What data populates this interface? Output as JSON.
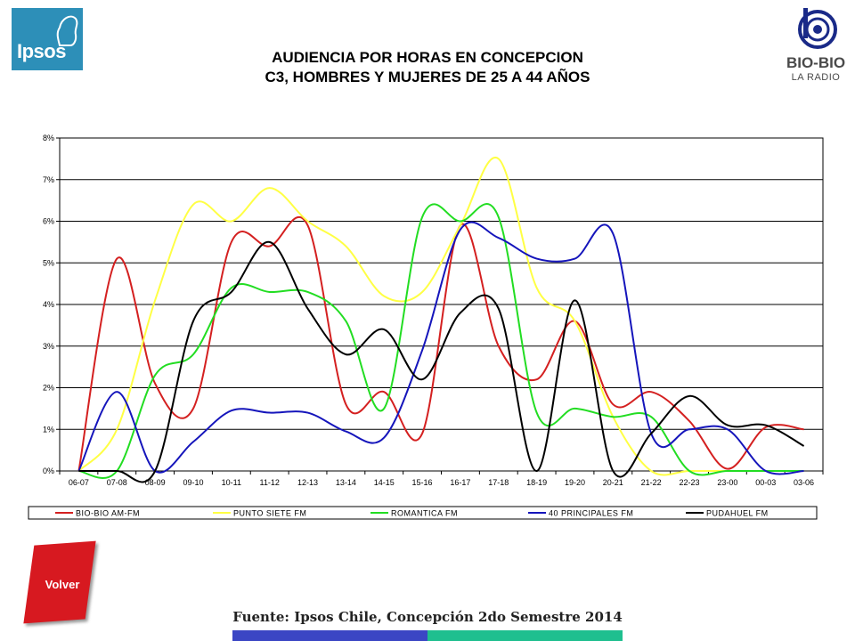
{
  "logo": {
    "text": "Ipsos"
  },
  "brand": {
    "name": "BIO-BIO",
    "subtitle": "LA RADIO"
  },
  "title": {
    "line1": "AUDIENCIA POR HORAS EN CONCEPCION",
    "line2": "C3, HOMBRES Y MUJERES DE 25 A 44 AÑOS"
  },
  "volver_label": "Volver",
  "source": "Fuente: Ipsos Chile, Concepción 2do Semestre 2014",
  "chart_data": {
    "type": "line",
    "title": "",
    "xlabel": "",
    "ylabel": "",
    "ylim": [
      0,
      8
    ],
    "ytick_labels": [
      "0%",
      "1%",
      "2%",
      "3%",
      "4%",
      "5%",
      "6%",
      "7%",
      "8%"
    ],
    "grid": true,
    "legend_position": "bottom",
    "categories": [
      "06-07",
      "07-08",
      "08-09",
      "09-10",
      "10-11",
      "11-12",
      "12-13",
      "13-14",
      "14-15",
      "15-16",
      "16-17",
      "17-18",
      "18-19",
      "19-20",
      "20-21",
      "21-22",
      "22-23",
      "23-00",
      "00-03",
      "03-06"
    ],
    "series": [
      {
        "name": "BIO-BIO AM-FM",
        "color": "#d42020",
        "values": [
          0,
          5.1,
          2.1,
          1.5,
          5.5,
          5.4,
          5.9,
          1.6,
          1.9,
          0.9,
          5.9,
          3.0,
          2.2,
          3.6,
          1.6,
          1.9,
          1.2,
          0.05,
          1.05,
          1.0
        ]
      },
      {
        "name": "PUNTO SIETE FM",
        "color": "#ffff44",
        "values": [
          0,
          1.0,
          4.1,
          6.4,
          6.0,
          6.8,
          6.0,
          5.4,
          4.2,
          4.3,
          5.9,
          7.5,
          4.4,
          3.6,
          1.3,
          0,
          0,
          0,
          0,
          0
        ]
      },
      {
        "name": "ROMANTICA FM",
        "color": "#22dd22",
        "values": [
          0,
          0,
          2.3,
          2.8,
          4.4,
          4.3,
          4.3,
          3.6,
          1.5,
          6.1,
          6.0,
          6.1,
          1.4,
          1.5,
          1.3,
          1.3,
          0,
          0,
          0,
          0
        ]
      },
      {
        "name": "40 PRINCIPALES FM",
        "color": "#1515bb",
        "values": [
          0,
          1.9,
          0,
          0.7,
          1.45,
          1.4,
          1.4,
          0.95,
          0.8,
          2.9,
          5.8,
          5.6,
          5.1,
          5.1,
          5.7,
          0.9,
          1.0,
          1.0,
          0,
          0
        ]
      },
      {
        "name": "PUDAHUEL FM",
        "color": "#000000",
        "values": [
          0,
          0,
          0,
          3.6,
          4.3,
          5.5,
          3.9,
          2.8,
          3.4,
          2.2,
          3.8,
          3.9,
          0,
          4.1,
          0,
          0.9,
          1.8,
          1.1,
          1.1,
          0.6
        ]
      }
    ]
  }
}
